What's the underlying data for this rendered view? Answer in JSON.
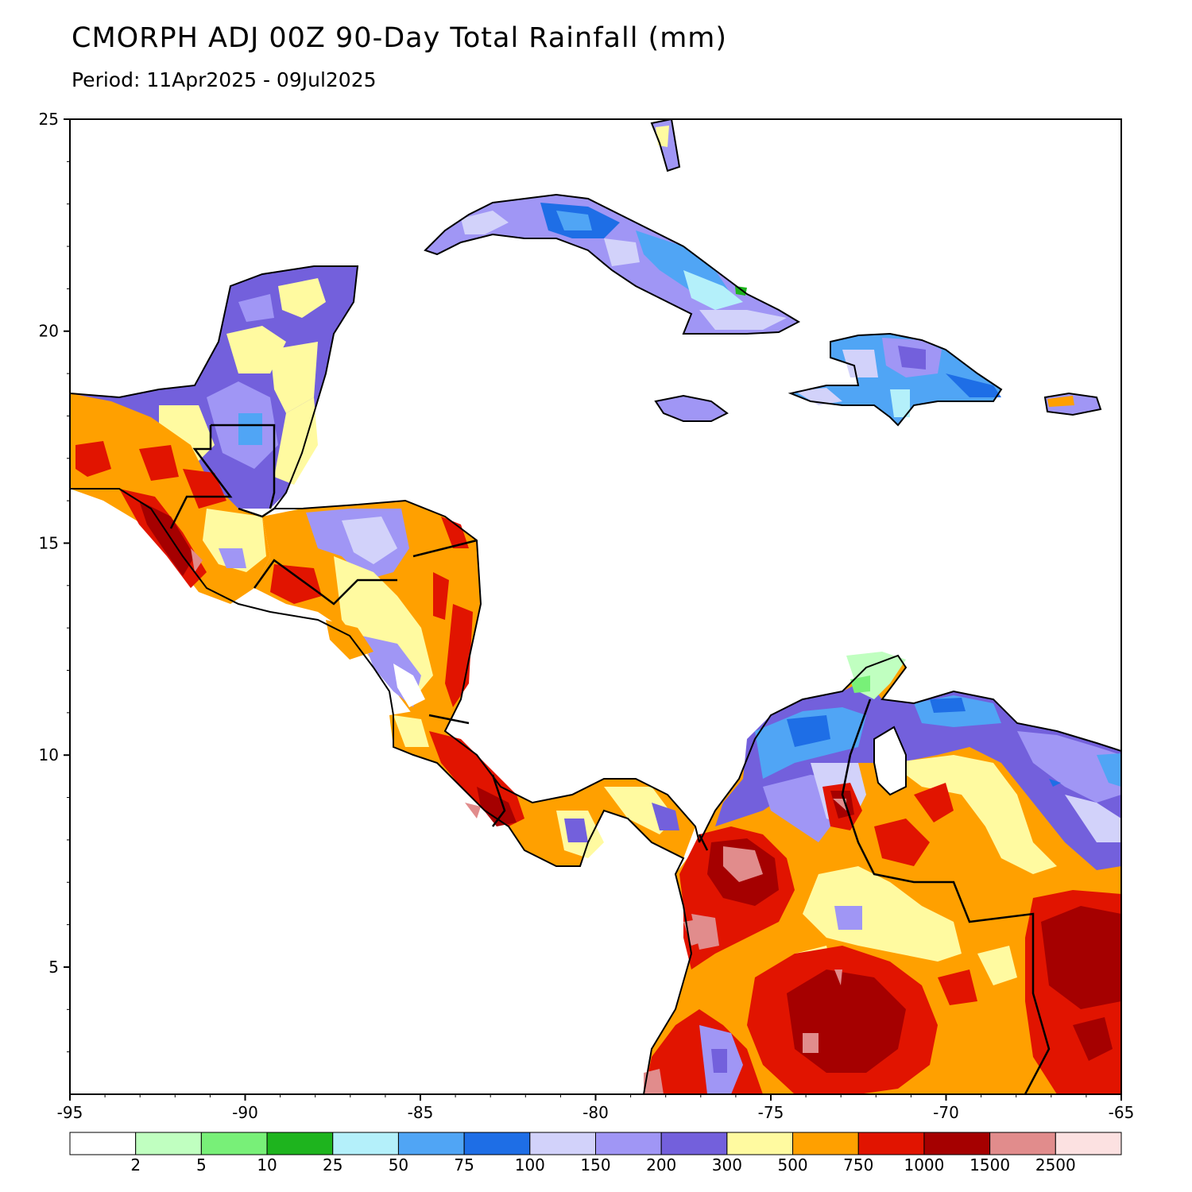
{
  "header": {
    "title": "CMORPH ADJ 00Z 90-Day Total Rainfall (mm)",
    "period": "Period: 11Apr2025 - 09Jul2025"
  },
  "axes": {
    "x_ticks": [
      -95,
      -90,
      -85,
      -80,
      -75,
      -70,
      -65
    ],
    "x_labels": [
      "-95",
      "-90",
      "-85",
      "-80",
      "-75",
      "-70",
      "-65"
    ],
    "y_ticks": [
      25,
      20,
      15,
      10,
      5
    ],
    "y_labels": [
      "25",
      "20",
      "15",
      "10",
      "5"
    ],
    "xlim": [
      -95,
      -65
    ],
    "ylim": [
      2.0,
      25
    ]
  },
  "colorbar": {
    "colors": [
      "#ffffff",
      "#c0ffc0",
      "#78f078",
      "#1eb41e",
      "#b4f0fa",
      "#50a5f5",
      "#1e6ee6",
      "#d2d2fa",
      "#a096f5",
      "#7360dc",
      "#fffaa0",
      "#ffa000",
      "#e11400",
      "#a50000",
      "#e18c8c",
      "#fce1e1"
    ],
    "labels": [
      "2",
      "5",
      "10",
      "25",
      "50",
      "75",
      "100",
      "150",
      "200",
      "300",
      "500",
      "750",
      "1000",
      "1500",
      "2500"
    ]
  },
  "colors": {
    "coast": "#000000",
    "border": "#000000",
    "admin": "#a0a0a0"
  }
}
